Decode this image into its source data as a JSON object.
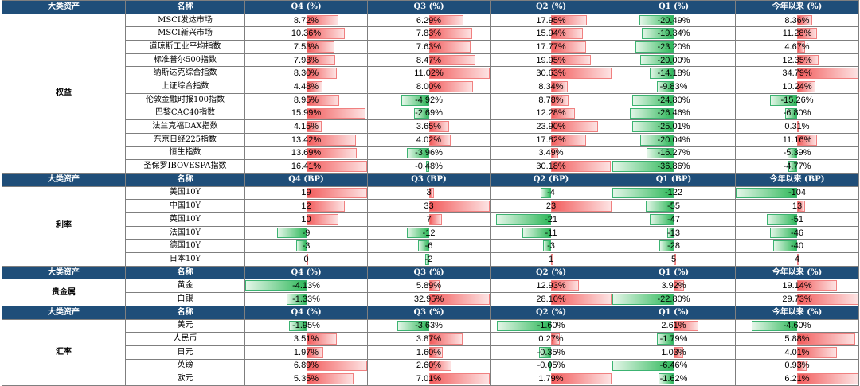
{
  "sections": [
    {
      "category": "权益",
      "headers": [
        "大类资产",
        "名称",
        "Q4 (%)",
        "Q3 (%)",
        "Q2 (%)",
        "Q1 (%)",
        "今年以来 (%)"
      ],
      "unit": "%",
      "rows": [
        {
          "name": "MSCI发达市场",
          "values": [
            8.72,
            6.29,
            17.95,
            -20.49,
            8.36
          ]
        },
        {
          "name": "MSCI新兴市场",
          "values": [
            10.36,
            7.83,
            15.94,
            -19.34,
            11.28
          ]
        },
        {
          "name": "道琼斯工业平均指数",
          "values": [
            7.53,
            7.63,
            17.77,
            -23.2,
            4.67
          ]
        },
        {
          "name": "标准普尔500指数",
          "values": [
            7.93,
            8.47,
            19.95,
            -20.0,
            12.35
          ]
        },
        {
          "name": "纳斯达克综合指数",
          "values": [
            8.3,
            11.02,
            30.63,
            -14.18,
            34.79
          ]
        },
        {
          "name": "上证综合指数",
          "values": [
            4.48,
            8.0,
            8.34,
            -9.83,
            10.24
          ]
        },
        {
          "name": "伦敦金融时报100指数",
          "values": [
            8.95,
            -4.92,
            8.78,
            -24.8,
            -15.26
          ]
        },
        {
          "name": "巴黎CAC40指数",
          "values": [
            15.99,
            -2.69,
            12.28,
            -26.46,
            -6.8
          ]
        },
        {
          "name": "法兰克福DAX指数",
          "values": [
            4.15,
            3.65,
            23.9,
            -25.01,
            0.31
          ]
        },
        {
          "name": "东京日经225指数",
          "values": [
            13.42,
            4.02,
            17.82,
            -20.04,
            11.16
          ]
        },
        {
          "name": "恒生指数",
          "values": [
            13.69,
            -3.96,
            3.49,
            -16.27,
            -5.39
          ]
        },
        {
          "name": "圣保罗IBOVESPA指数",
          "values": [
            16.41,
            -0.48,
            30.18,
            -36.86,
            -4.77
          ]
        }
      ]
    },
    {
      "category": "利率",
      "headers": [
        "大类资产",
        "名称",
        "Q4 (BP)",
        "Q3 (BP)",
        "Q2 (BP)",
        "Q1 (BP)",
        "今年以来 (BP)"
      ],
      "unit": "BP",
      "rows": [
        {
          "name": "美国10Y",
          "values": [
            19,
            3,
            -4,
            -122,
            -104
          ]
        },
        {
          "name": "中国10Y",
          "values": [
            12,
            33,
            23,
            -55,
            13
          ]
        },
        {
          "name": "英国10Y",
          "values": [
            10,
            7,
            -21,
            -47,
            -51
          ]
        },
        {
          "name": "法国10Y",
          "values": [
            -9,
            -12,
            -11,
            -13,
            -46
          ]
        },
        {
          "name": "德国10Y",
          "values": [
            -3,
            -6,
            -3,
            -28,
            -40
          ]
        },
        {
          "name": "日本10Y",
          "values": [
            0,
            -2,
            1,
            5,
            4
          ]
        }
      ]
    },
    {
      "category": "贵金属",
      "headers": [
        "大类资产",
        "名称",
        "Q4 (%)",
        "Q3 (%)",
        "Q2 (%)",
        "Q1 (%)",
        "今年以来 (%)"
      ],
      "unit": "%",
      "rows": [
        {
          "name": "黄金",
          "values": [
            -4.13,
            5.89,
            12.93,
            3.92,
            19.14
          ]
        },
        {
          "name": "白银",
          "values": [
            -1.33,
            32.95,
            28.1,
            -22.8,
            29.73
          ]
        }
      ]
    },
    {
      "category": "汇率",
      "headers": [
        "大类资产",
        "名称",
        "Q4 (%)",
        "Q3 (%)",
        "Q2 (%)",
        "Q1 (%)",
        "今年以来 (%)"
      ],
      "unit": "%",
      "rows": [
        {
          "name": "美元",
          "values": [
            -1.95,
            -3.63,
            -1.6,
            2.61,
            -4.6
          ]
        },
        {
          "name": "人民币",
          "values": [
            3.51,
            3.87,
            0.27,
            -1.79,
            5.88
          ]
        },
        {
          "name": "日元",
          "values": [
            1.97,
            1.6,
            -0.35,
            1.03,
            4.01
          ]
        },
        {
          "name": "英镑",
          "values": [
            6.89,
            2.6,
            -0.05,
            -6.46,
            0.93
          ]
        },
        {
          "name": "欧元",
          "values": [
            5.35,
            7.01,
            1.79,
            -1.62,
            6.21
          ]
        }
      ]
    }
  ],
  "colors": {
    "header_bg": "#1f4e79",
    "positive": "#f25c5c",
    "negative": "#2fb85a"
  }
}
